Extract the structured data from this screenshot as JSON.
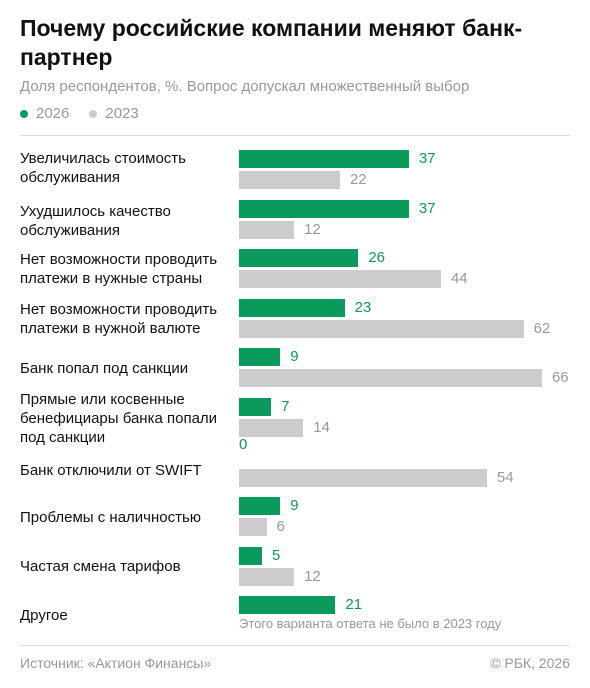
{
  "title": "Почему российские компании меняют банк-партнер",
  "subtitle": "Доля респондентов, %. Вопрос допускал множественный выбор",
  "legend": [
    {
      "label": "2026",
      "color": "#0a9b5c"
    },
    {
      "label": "2023",
      "color": "#cccccc"
    }
  ],
  "colors": {
    "series_2026": "#0a9b5c",
    "series_2023": "#cccccc",
    "value_2026": "#0a9b5c",
    "value_2023": "#999999"
  },
  "chart_data": {
    "type": "bar",
    "orientation": "horizontal",
    "categories": [
      "Увеличилась стоимость обслуживания",
      "Ухудшилось качество обслуживания",
      "Нет возможности проводить платежи в нужные страны",
      "Нет возможности проводить платежи в нужной валюте",
      "Банк попал под санкции",
      "Прямые или косвенные бенефициары банка попали под санкции",
      "Банк отключили от SWIFT",
      "Проблемы с наличностью",
      "Частая смена тарифов",
      "Другое"
    ],
    "series": [
      {
        "name": "2026",
        "values": [
          37,
          37,
          26,
          23,
          9,
          7,
          0,
          9,
          5,
          21
        ]
      },
      {
        "name": "2023",
        "values": [
          22,
          12,
          44,
          62,
          66,
          14,
          54,
          6,
          12,
          null
        ]
      }
    ],
    "notes": {
      "9": "Этого варианта ответа не было в 2023 году"
    }
  },
  "footer": {
    "source": "Источник: «Актион Финансы»",
    "copyright": "© РБК, 2026"
  }
}
